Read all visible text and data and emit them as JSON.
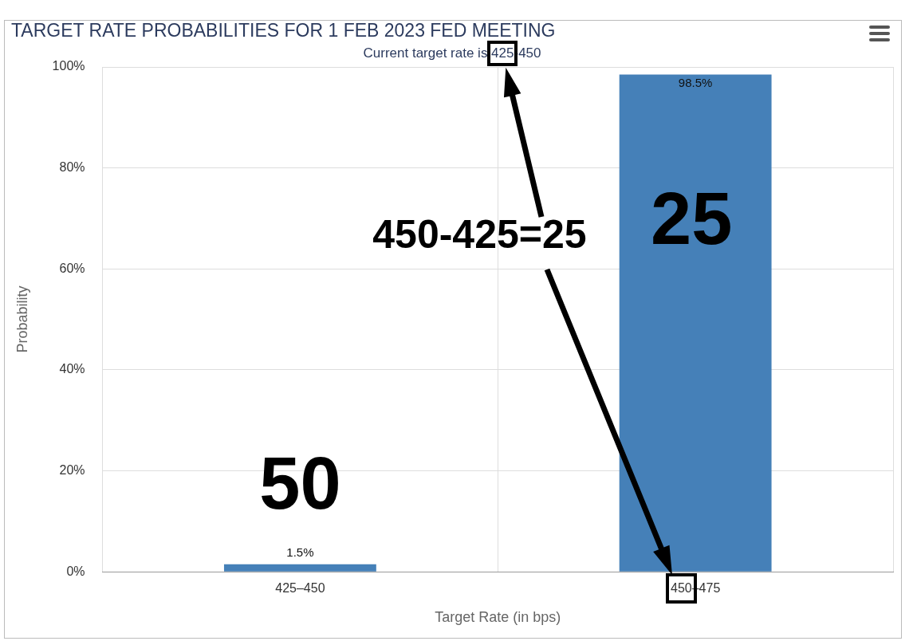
{
  "chart_data": {
    "type": "bar",
    "title": "TARGET RATE PROBABILITIES FOR 1 FEB 2023 FED MEETING",
    "subtitle": "Current target rate is 425-450",
    "xlabel": "Target Rate (in bps)",
    "ylabel": "Probability",
    "categories": [
      "425–450",
      "450–475"
    ],
    "values": [
      1.5,
      98.5
    ],
    "value_labels": [
      "1.5%",
      "98.5%"
    ],
    "color": "#4580b8",
    "ylim": [
      0,
      100
    ],
    "yticks": [
      {
        "value": 0,
        "label": "0%"
      },
      {
        "value": 20,
        "label": "20%"
      },
      {
        "value": 40,
        "label": "40%"
      },
      {
        "value": 60,
        "label": "60%"
      },
      {
        "value": 80,
        "label": "80%"
      },
      {
        "value": 100,
        "label": "100%"
      }
    ],
    "grid": true,
    "legend": false,
    "annotations": [
      "50",
      "25",
      "450-425=25"
    ]
  }
}
